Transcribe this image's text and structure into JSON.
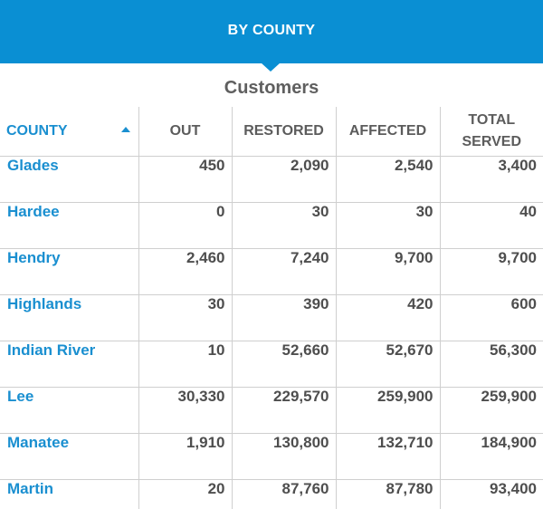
{
  "header": {
    "title": "BY COUNTY"
  },
  "section": {
    "title": "Customers"
  },
  "table": {
    "columns": {
      "county": "COUNTY",
      "out": "OUT",
      "restored": "RESTORED",
      "affected": "AFFECTED",
      "total_served_line1": "TOTAL",
      "total_served_line2": "SERVED"
    },
    "sort": {
      "column": "COUNTY",
      "direction": "ascending"
    },
    "rows": [
      {
        "county": "Glades",
        "out": "450",
        "restored": "2,090",
        "affected": "2,540",
        "total": "3,400"
      },
      {
        "county": "Hardee",
        "out": "0",
        "restored": "30",
        "affected": "30",
        "total": "40"
      },
      {
        "county": "Hendry",
        "out": "2,460",
        "restored": "7,240",
        "affected": "9,700",
        "total": "9,700"
      },
      {
        "county": "Highlands",
        "out": "30",
        "restored": "390",
        "affected": "420",
        "total": "600"
      },
      {
        "county": "Indian River",
        "out": "10",
        "restored": "52,660",
        "affected": "52,670",
        "total": "56,300"
      },
      {
        "county": "Lee",
        "out": "30,330",
        "restored": "229,570",
        "affected": "259,900",
        "total": "259,900"
      },
      {
        "county": "Manatee",
        "out": "1,910",
        "restored": "130,800",
        "affected": "132,710",
        "total": "184,900"
      },
      {
        "county": "Martin",
        "out": "20",
        "restored": "87,760",
        "affected": "87,780",
        "total": "93,400"
      }
    ]
  },
  "colors": {
    "accent": "#0a8fd3",
    "link": "#1a8fd0",
    "text": "#4e4e4e",
    "border": "#cfcfcf"
  }
}
